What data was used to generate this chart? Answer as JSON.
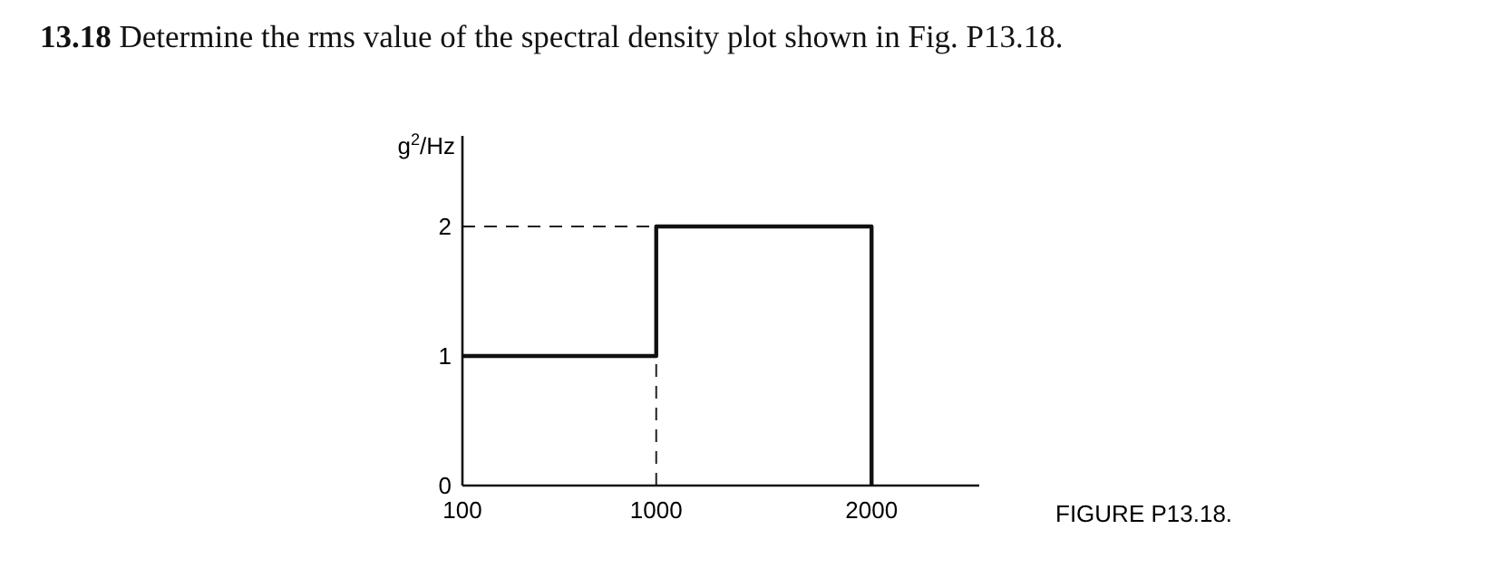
{
  "chart_data": {
    "type": "line",
    "title": "13.18 Determine the rms value of the spectral density plot shown in Fig. P13.18.",
    "ylabel": "g$^{2}$/Hz",
    "series": [
      {
        "color": "#111111",
        "x": [
          100,
          1000,
          1000,
          2000,
          2000
        ],
        "values": [
          1,
          1,
          2,
          2,
          0
        ]
      }
    ],
    "xlim": [
      100,
      2500
    ],
    "xticks": [
      100,
      1000,
      2000
    ],
    "ylim": [
      0,
      2.7
    ],
    "yticks": [
      0,
      1,
      2
    ],
    "ref_lines": [
      {
        "axis": "y",
        "value": 2,
        "line_style": "dashed"
      },
      {
        "axis": "x",
        "value": 1000,
        "line_style": "dashed"
      }
    ],
    "annotations": [
      "FIGURE P13.18."
    ],
    "line_style": "solid"
  }
}
